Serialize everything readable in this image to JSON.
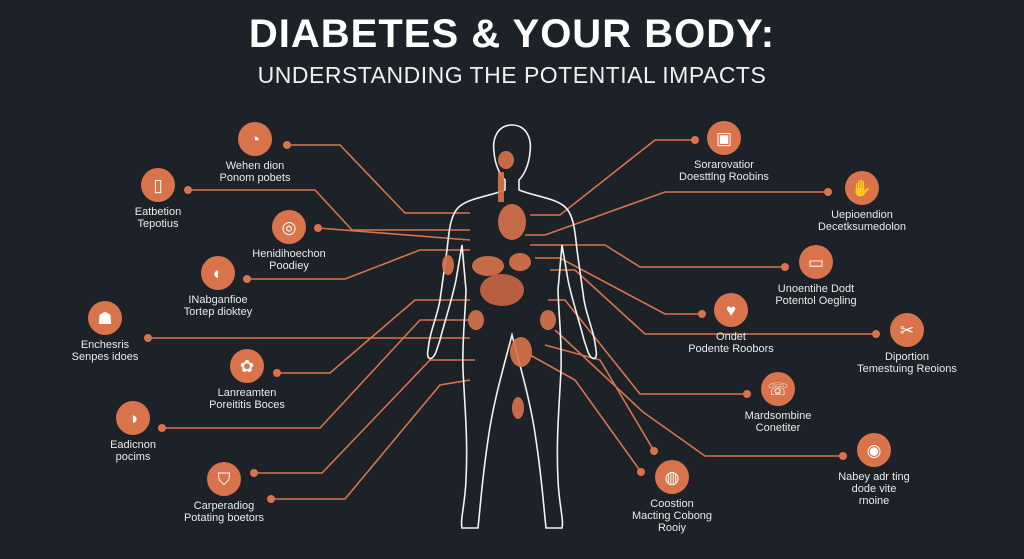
{
  "header": {
    "title": "DIABETES & YOUR BODY:",
    "subtitle": "UNDERSTANDING THE POTENTIAL IMPACTS"
  },
  "colors": {
    "background": "#1d2228",
    "accent": "#d9734c",
    "outline": "#ffffff"
  },
  "left_items": [
    {
      "icon": "stomach-icon",
      "glyph": "◔",
      "lines": [
        "Wehen dion",
        "Ponom pobets"
      ]
    },
    {
      "icon": "kidney-icon",
      "glyph": "▯",
      "lines": [
        "Eatbetion",
        "Tepotius"
      ]
    },
    {
      "icon": "target-icon",
      "glyph": "◎",
      "lines": [
        "Henidihoechon",
        "Poodiey"
      ]
    },
    {
      "icon": "organ-icon",
      "glyph": "◐",
      "lines": [
        "INabganfioe",
        "Tortep dioktey"
      ]
    },
    {
      "icon": "people-icon",
      "glyph": "☗",
      "lines": [
        "Enchesris",
        "Senpes idoes"
      ]
    },
    {
      "icon": "paw-icon",
      "glyph": "✿",
      "lines": [
        "Lanreamten",
        "Poreititis Boces"
      ]
    },
    {
      "icon": "liver-icon",
      "glyph": "◑",
      "lines": [
        "Eadicnon",
        "pocims"
      ]
    },
    {
      "icon": "shield-icon",
      "glyph": "⛉",
      "lines": [
        "Carperadiog",
        "Potating boetors"
      ]
    }
  ],
  "right_items": [
    {
      "icon": "document-icon",
      "glyph": "▣",
      "lines": [
        "Sorarovatior",
        "Doesttlng Roobins"
      ]
    },
    {
      "icon": "hand-icon",
      "glyph": "✋",
      "lines": [
        "Uepioendion",
        "Decetksumedolon"
      ]
    },
    {
      "icon": "monitor-icon",
      "glyph": "▭",
      "lines": [
        "Unoentihe Dodt",
        "Potentol Oegling"
      ]
    },
    {
      "icon": "heart-icon",
      "glyph": "♥",
      "lines": [
        "Ondet",
        "Podente Roobors"
      ]
    },
    {
      "icon": "scissors-icon",
      "glyph": "✂",
      "lines": [
        "Diportion",
        "Temestuing Reoions"
      ]
    },
    {
      "icon": "ear-icon",
      "glyph": "☏",
      "lines": [
        "Mardsombine",
        "Conetiter"
      ]
    },
    {
      "icon": "eye-icon",
      "glyph": "◉",
      "lines": [
        "Nabey adr ting",
        "dode vite",
        "rnoine"
      ]
    },
    {
      "icon": "brain-icon",
      "glyph": "◍",
      "lines": [
        "Coostion",
        "Macting Cobong",
        "Rooiy"
      ]
    }
  ]
}
